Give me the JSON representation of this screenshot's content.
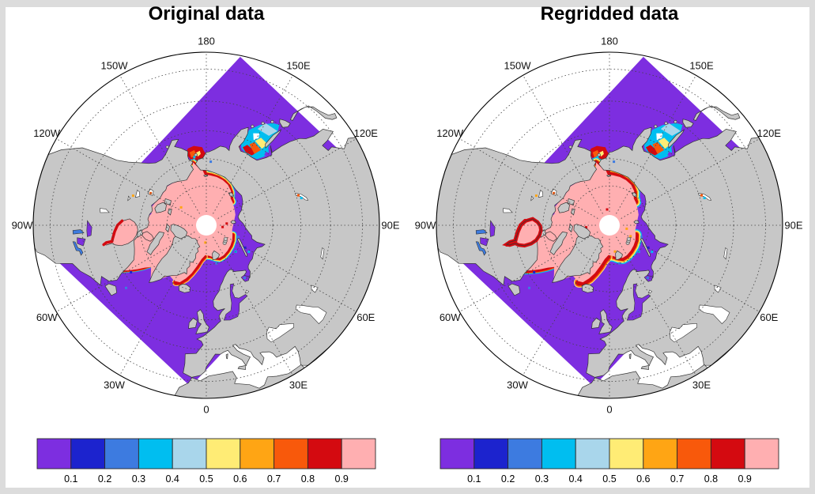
{
  "figure": {
    "background_color": "#DCDCDC",
    "panel_background": "#FFFFFF"
  },
  "panels": [
    {
      "title": "Original data"
    },
    {
      "title": "Regridded data"
    }
  ],
  "meridian_labels": [
    "180",
    "150E",
    "120E",
    "90E",
    "60E",
    "30E",
    "0",
    "30W",
    "60W",
    "90W",
    "120W",
    "150W"
  ],
  "meridian_lons": [
    180,
    150,
    120,
    90,
    60,
    30,
    0,
    -30,
    -60,
    -90,
    -120,
    -150
  ],
  "colorbar": {
    "tick_labels": [
      "0.1",
      "0.2",
      "0.3",
      "0.4",
      "0.5",
      "0.6",
      "0.7",
      "0.8",
      "0.9"
    ],
    "colors": [
      "#7D2EE0",
      "#1C23CE",
      "#3D7BE0",
      "#00BEF0",
      "#A9D6EB",
      "#FFEC75",
      "#FFA514",
      "#F8590B",
      "#D40A10",
      "#FFAFB1"
    ]
  },
  "map_colors": {
    "land": "#C7C7C7",
    "coast": "#333333",
    "ocean_outside": "#FFFFFF",
    "open_water": "#7D2EE0",
    "ice_full": "#FFAFB1",
    "graticule": "#444444",
    "circle": "#000000"
  }
}
